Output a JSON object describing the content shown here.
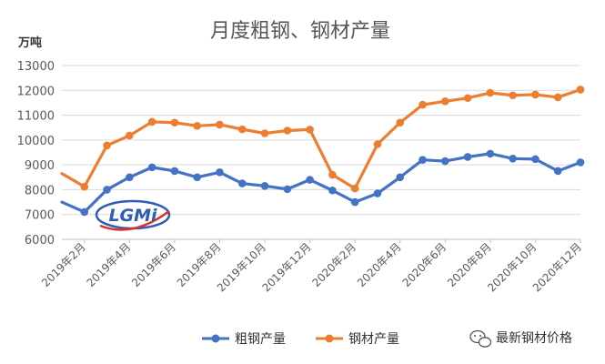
{
  "chart_data": {
    "type": "line",
    "title": "月度粗钢、钢材产量",
    "unit_label": "万吨",
    "ylim": [
      6000,
      13000
    ],
    "yticks": [
      "13000",
      "12000",
      "11000",
      "10000",
      "9000",
      "8000",
      "7000",
      "6000"
    ],
    "ytick_values": [
      13000,
      12000,
      11000,
      10000,
      9000,
      8000,
      7000,
      6000
    ],
    "grid": true,
    "legend_position": "bottom",
    "x": [
      "2019年1月",
      "2019年2月",
      "2019年3月",
      "2019年4月",
      "2019年5月",
      "2019年6月",
      "2019年7月",
      "2019年8月",
      "2019年9月",
      "2019年10月",
      "2019年11月",
      "2019年12月",
      "2020年1月",
      "2020年2月",
      "2020年3月",
      "2020年4月",
      "2020年5月",
      "2020年6月",
      "2020年7月",
      "2020年8月",
      "2020年9月",
      "2020年10月",
      "2020年11月",
      "2020年12月"
    ],
    "xtick_labels": [
      "2019年2月",
      "2019年4月",
      "2019年6月",
      "2019年8月",
      "2019年10月",
      "2019年12月",
      "2020年2月",
      "2020年4月",
      "2020年6月",
      "2020年8月",
      "2020年10月",
      "2020年12月"
    ],
    "series": [
      {
        "name": "粗钢产量",
        "color": "#4472C4",
        "values": [
          7500,
          7100,
          8000,
          8500,
          8900,
          8750,
          8500,
          8700,
          8250,
          8150,
          8020,
          8400,
          7970,
          7500,
          7850,
          8500,
          9200,
          9150,
          9320,
          9450,
          9250,
          9230,
          8750,
          9100
        ]
      },
      {
        "name": "钢材产量",
        "color": "#ED7D31",
        "values": [
          8650,
          8120,
          9780,
          10180,
          10730,
          10700,
          10570,
          10620,
          10430,
          10270,
          10380,
          10420,
          8600,
          8050,
          9830,
          10700,
          11420,
          11560,
          11690,
          11900,
          11800,
          11830,
          11720,
          12030
        ]
      }
    ]
  },
  "logo": {
    "text": "LGMi",
    "color": "#2E5CB8"
  },
  "watermark": {
    "icon": "wechat-icon",
    "text": "最新钢材价格"
  }
}
